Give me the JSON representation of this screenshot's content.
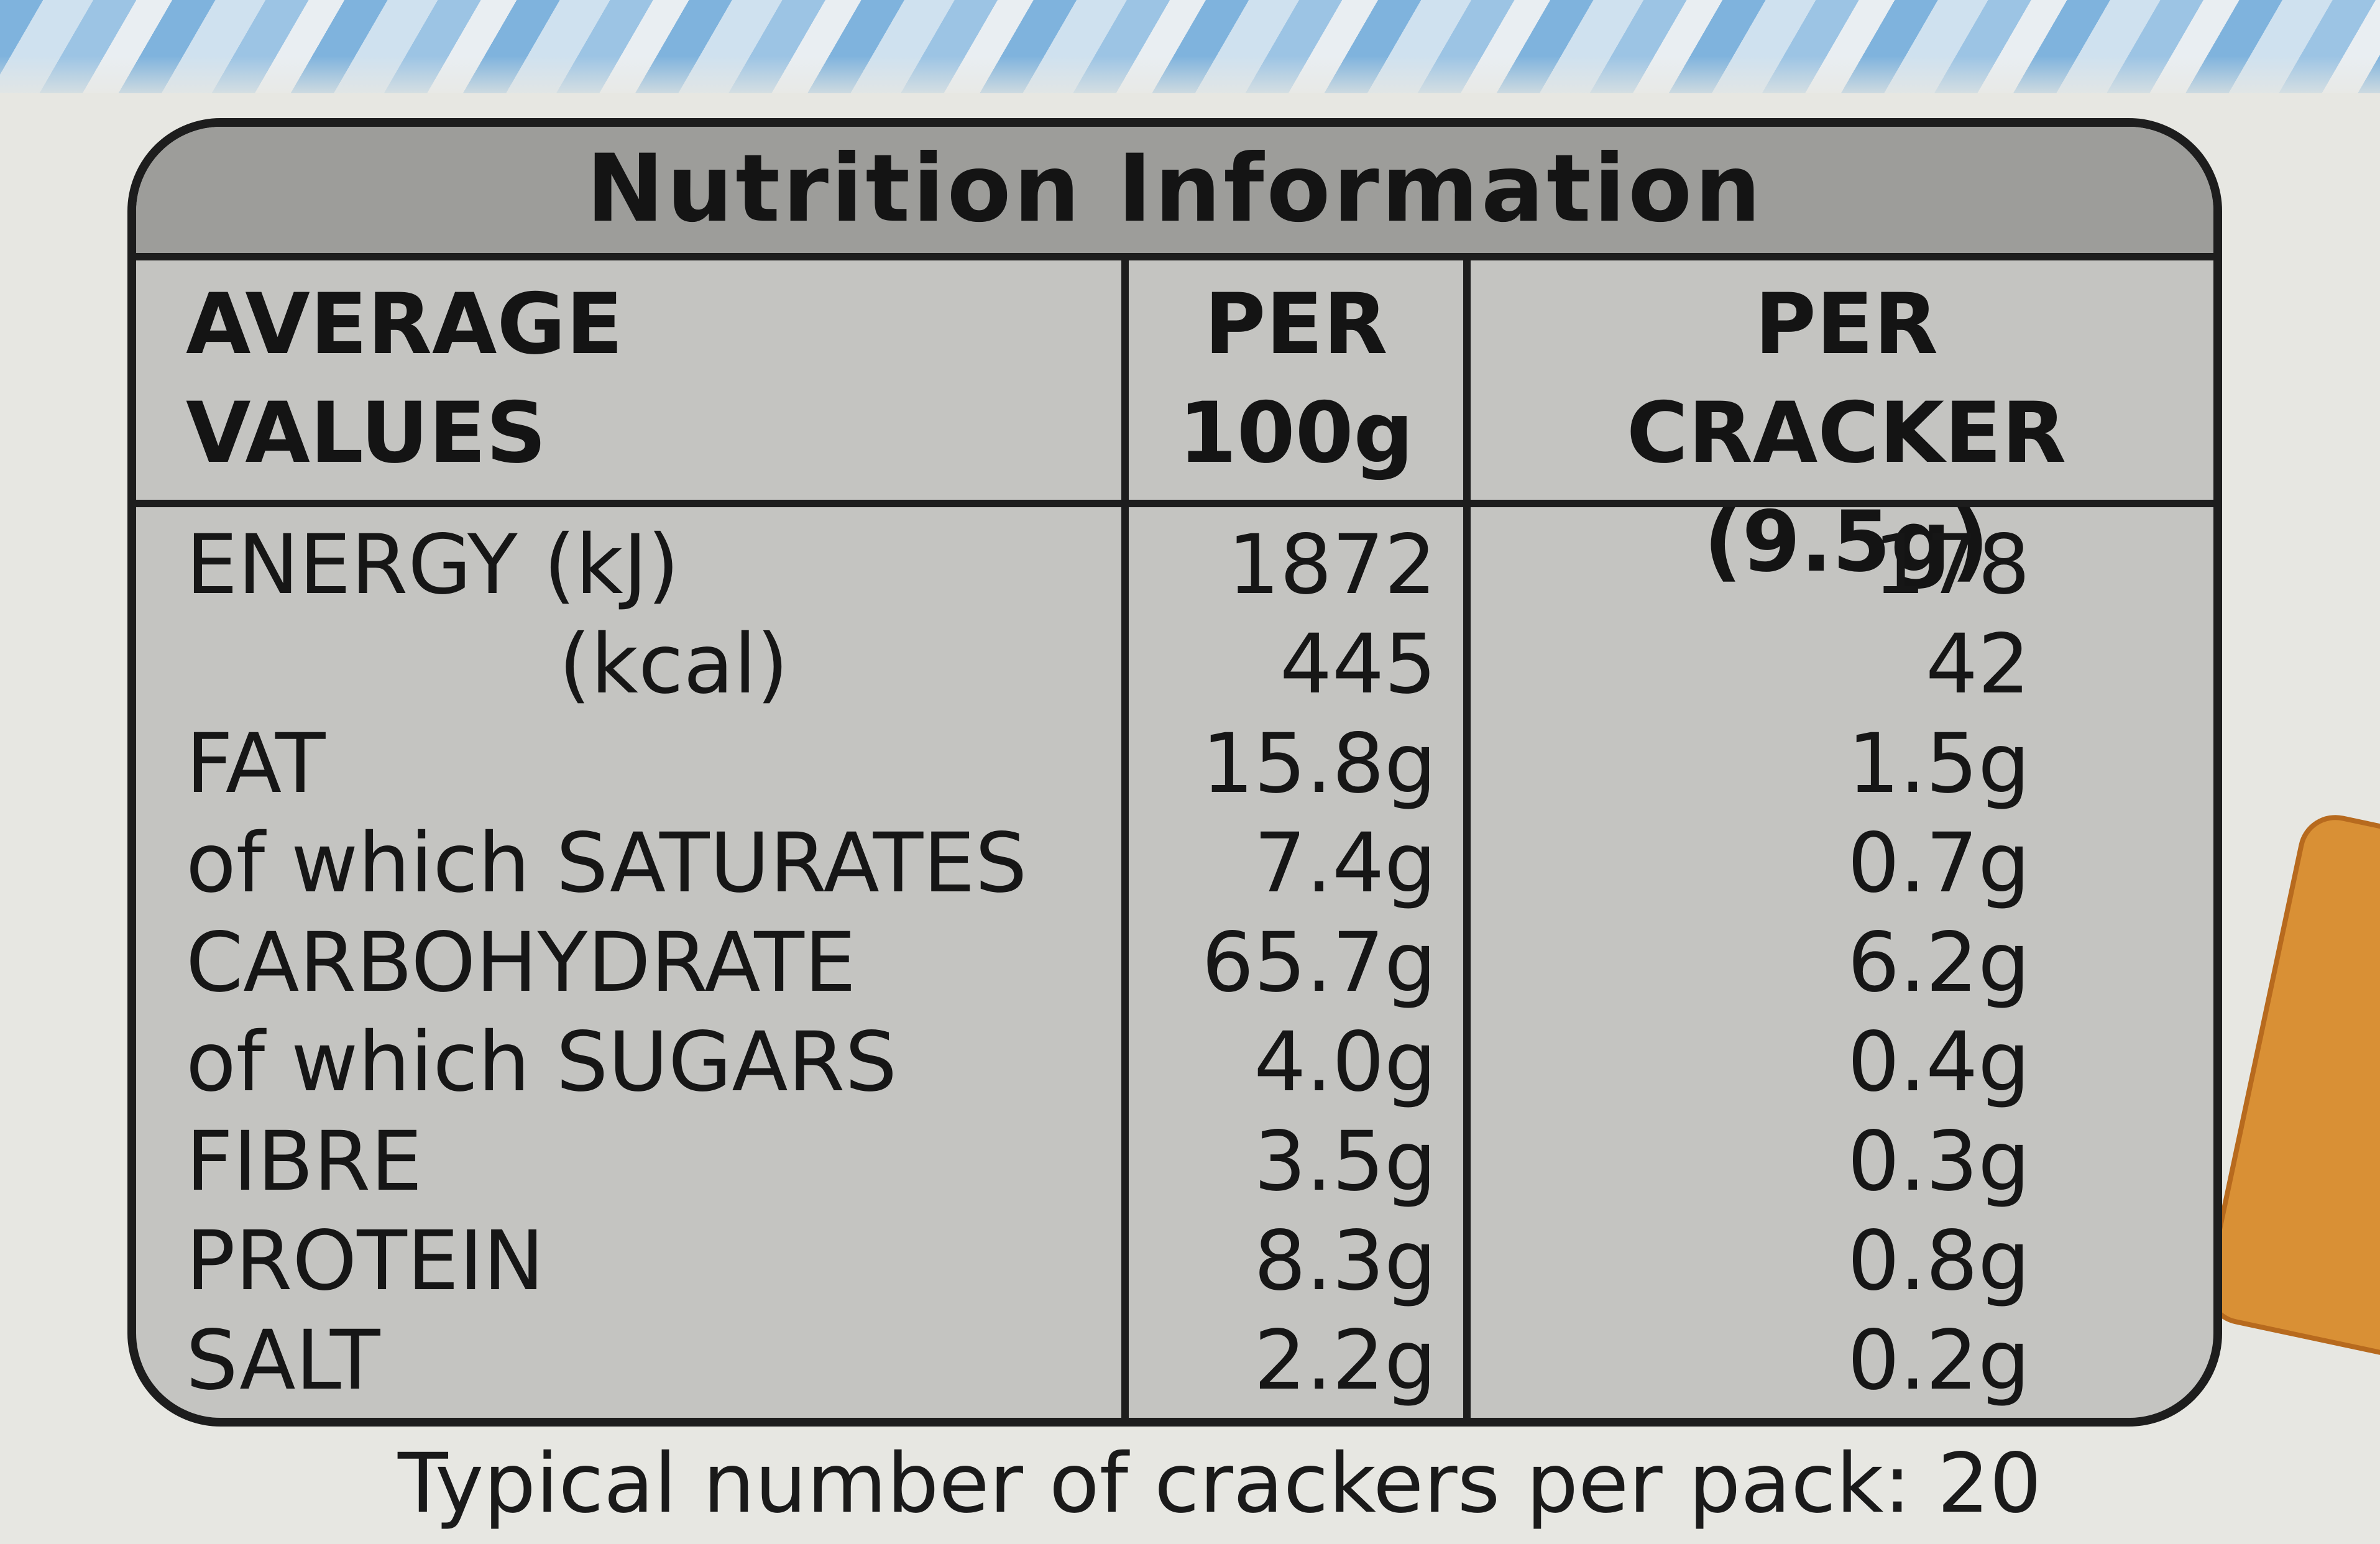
{
  "panel": {
    "title": "Nutrition Information",
    "header": {
      "label_line1": "AVERAGE",
      "label_line2": "VALUES",
      "col1_line1": "PER",
      "col1_line2": "100g",
      "col2_line1": "PER",
      "col2_line2": "CRACKER (9.5g)"
    },
    "rows": [
      {
        "label": "ENERGY (kJ)",
        "per100g": "1872",
        "per_cracker": "178"
      },
      {
        "label": "(kcal)",
        "per100g": "445",
        "per_cracker": "42"
      },
      {
        "label": "FAT",
        "per100g": "15.8g",
        "per_cracker": "1.5g"
      },
      {
        "label": "of which SATURATES",
        "per100g": "7.4g",
        "per_cracker": "0.7g"
      },
      {
        "label": "CARBOHYDRATE",
        "per100g": "65.7g",
        "per_cracker": "6.2g"
      },
      {
        "label": "of which SUGARS",
        "per100g": "4.0g",
        "per_cracker": "0.4g"
      },
      {
        "label": "FIBRE",
        "per100g": "3.5g",
        "per_cracker": "0.3g"
      },
      {
        "label": "PROTEIN",
        "per100g": "8.3g",
        "per_cracker": "0.8g"
      },
      {
        "label": "SALT",
        "per100g": "2.2g",
        "per_cracker": "0.2g"
      }
    ],
    "footer": "Typical number of crackers per pack: 20"
  },
  "colors": {
    "panel_fill": "#c4c4c1",
    "title_band": "#9d9d9a",
    "border": "#1d1d1d",
    "pattern_blue": "#7fb3dd",
    "cracker": "#d99035"
  }
}
